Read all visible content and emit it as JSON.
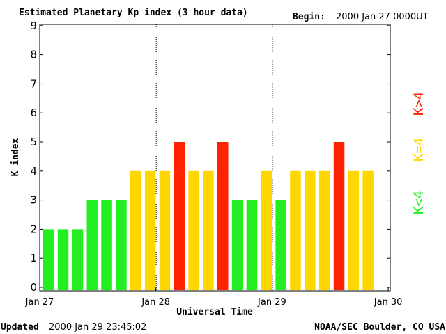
{
  "chart_data": {
    "type": "bar",
    "title": "Estimated Planetary Kp index (3 hour data)",
    "begin_label": "Begin:",
    "begin_value": "2000 Jan 27 0000UT",
    "xlabel": "Universal Time",
    "ylabel": "K index",
    "ylim": [
      0,
      9
    ],
    "yticks": [
      "0",
      "1",
      "2",
      "3",
      "4",
      "5",
      "6",
      "7",
      "8",
      "9"
    ],
    "x_day_labels": [
      "Jan 27",
      "Jan 28",
      "Jan 29",
      "Jan 30"
    ],
    "bins_per_day": 8,
    "values": [
      2,
      2,
      2,
      3,
      3,
      3,
      4,
      4,
      4,
      5,
      4,
      4,
      5,
      3,
      3,
      4,
      3,
      4,
      4,
      4,
      5,
      4,
      4
    ],
    "legend": [
      {
        "label": "K<4",
        "rule": "below 4",
        "color": "#22ee22"
      },
      {
        "label": "K=4",
        "rule": "equal 4",
        "color": "#ffd700"
      },
      {
        "label": "K>4",
        "rule": "above 4",
        "color": "#ff2200"
      }
    ],
    "grid": false
  },
  "footer": {
    "updated_label": "Updated",
    "updated_value": "2000 Jan 29 23:45:02",
    "source": "NOAA/SEC Boulder, CO USA"
  }
}
